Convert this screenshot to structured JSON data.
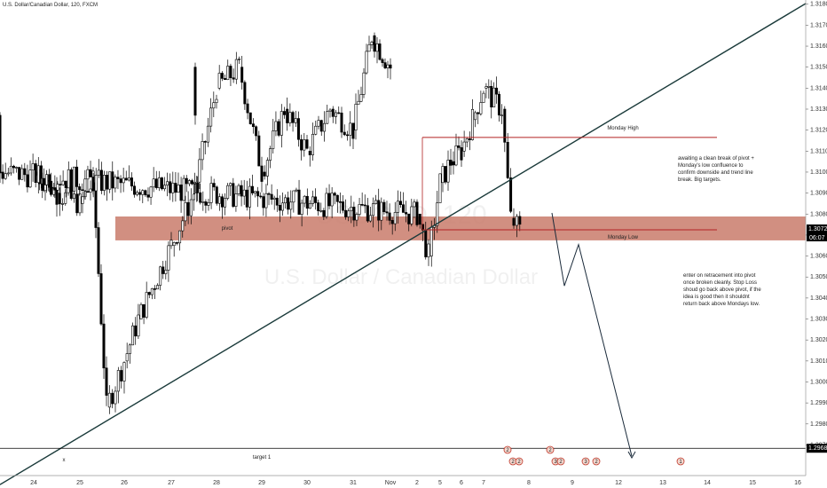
{
  "header": {
    "symbol_title": "U.S. Dollar/Canadian Dollar, 120, FXCM"
  },
  "watermark": {
    "ticker": "USDCAD, 120",
    "name": "U.S. Dollar / Canadian Dollar"
  },
  "colors": {
    "up": "#ffffff",
    "down": "#000000",
    "zone": "#c97b6b",
    "level": "#b22222",
    "trend": "#1a3a3a",
    "target": "#000000"
  },
  "price_axis": {
    "ticks": [
      "1.31800",
      "1.31700",
      "1.31600",
      "1.31500",
      "1.31400",
      "1.31300",
      "1.31200",
      "1.31100",
      "1.31000",
      "1.30900",
      "1.30800",
      "1.30700",
      "1.30600",
      "1.30500",
      "1.30400",
      "1.30300",
      "1.30200",
      "1.30100",
      "1.30000",
      "1.29900",
      "1.29800",
      "1.29700"
    ],
    "current_price": "1.30725",
    "countdown": "06:07",
    "target_price": "1.29684"
  },
  "time_axis": {
    "ticks": [
      "24",
      "25",
      "26",
      "27",
      "28",
      "29",
      "30",
      "31",
      "Nov",
      "2",
      "5",
      "6",
      "7",
      "8",
      "9",
      "12",
      "13",
      "14",
      "15",
      "16"
    ]
  },
  "annotations": {
    "pivot": "pivot",
    "monday_high": "Monday High",
    "monday_low": "Monday Low",
    "target": "target 1",
    "x_mark": "x",
    "note1": [
      "awaiting a clean break of pivot +",
      "Monday's low confluence to",
      "confirm downside and trend line",
      "break. Big targets."
    ],
    "note2": [
      "enter on retracement into pivot",
      "once broken cleanly. Stop Loss",
      "shoud go back above pivot, if the",
      "idea is good then it shouldnt",
      "return back above Mondays low."
    ]
  },
  "events": [
    "2",
    "2",
    "2",
    "2",
    "3",
    "2",
    "3",
    "2",
    "1"
  ],
  "chart_data": {
    "type": "candlestick",
    "title": "U.S. Dollar/Canadian Dollar, 120, FXCM",
    "ylim": [
      1.2963,
      1.3182
    ],
    "levels": {
      "pivot_zone": [
        1.307,
        1.3078
      ],
      "monday_high": 1.31165,
      "monday_low": 1.30725,
      "target_1": 1.29684
    },
    "trendline": [
      {
        "t": "24",
        "price": 1.2968
      },
      {
        "t": "16",
        "price": 1.318
      }
    ],
    "projection": [
      {
        "t": "8",
        "price": 1.3078
      },
      {
        "t": "8.5",
        "price": 1.305
      },
      {
        "t": "8.8",
        "price": 1.3068
      },
      {
        "t": "12.5",
        "price": 1.2966
      }
    ],
    "close_path": [
      {
        "t": "24",
        "price": 1.31
      },
      {
        "t": "24.5",
        "price": 1.309
      },
      {
        "t": "25",
        "price": 1.3085
      },
      {
        "t": "25.3",
        "price": 1.3095
      },
      {
        "t": "25.6",
        "price": 1.2988
      },
      {
        "t": "26",
        "price": 1.301
      },
      {
        "t": "26.3",
        "price": 1.303
      },
      {
        "t": "27",
        "price": 1.3065
      },
      {
        "t": "27.5",
        "price": 1.309
      },
      {
        "t": "28",
        "price": 1.314
      },
      {
        "t": "28.5",
        "price": 1.315
      },
      {
        "t": "29",
        "price": 1.31
      },
      {
        "t": "29.5",
        "price": 1.313
      },
      {
        "t": "30",
        "price": 1.311
      },
      {
        "t": "30.5",
        "price": 1.313
      },
      {
        "t": "31",
        "price": 1.312
      },
      {
        "t": "31.5",
        "price": 1.3165
      },
      {
        "t": "Nov",
        "price": 1.315
      },
      {
        "t": "1.5",
        "price": 1.31
      },
      {
        "t": "2",
        "price": 1.308
      },
      {
        "t": "2.5",
        "price": 1.306
      },
      {
        "t": "5",
        "price": 1.3095
      },
      {
        "t": "5.5",
        "price": 1.3105
      },
      {
        "t": "6",
        "price": 1.311
      },
      {
        "t": "6.5",
        "price": 1.3125
      },
      {
        "t": "7",
        "price": 1.314
      },
      {
        "t": "7.4",
        "price": 1.313
      },
      {
        "t": "7.6",
        "price": 1.3078
      },
      {
        "t": "7.8",
        "price": 1.3072
      }
    ]
  }
}
